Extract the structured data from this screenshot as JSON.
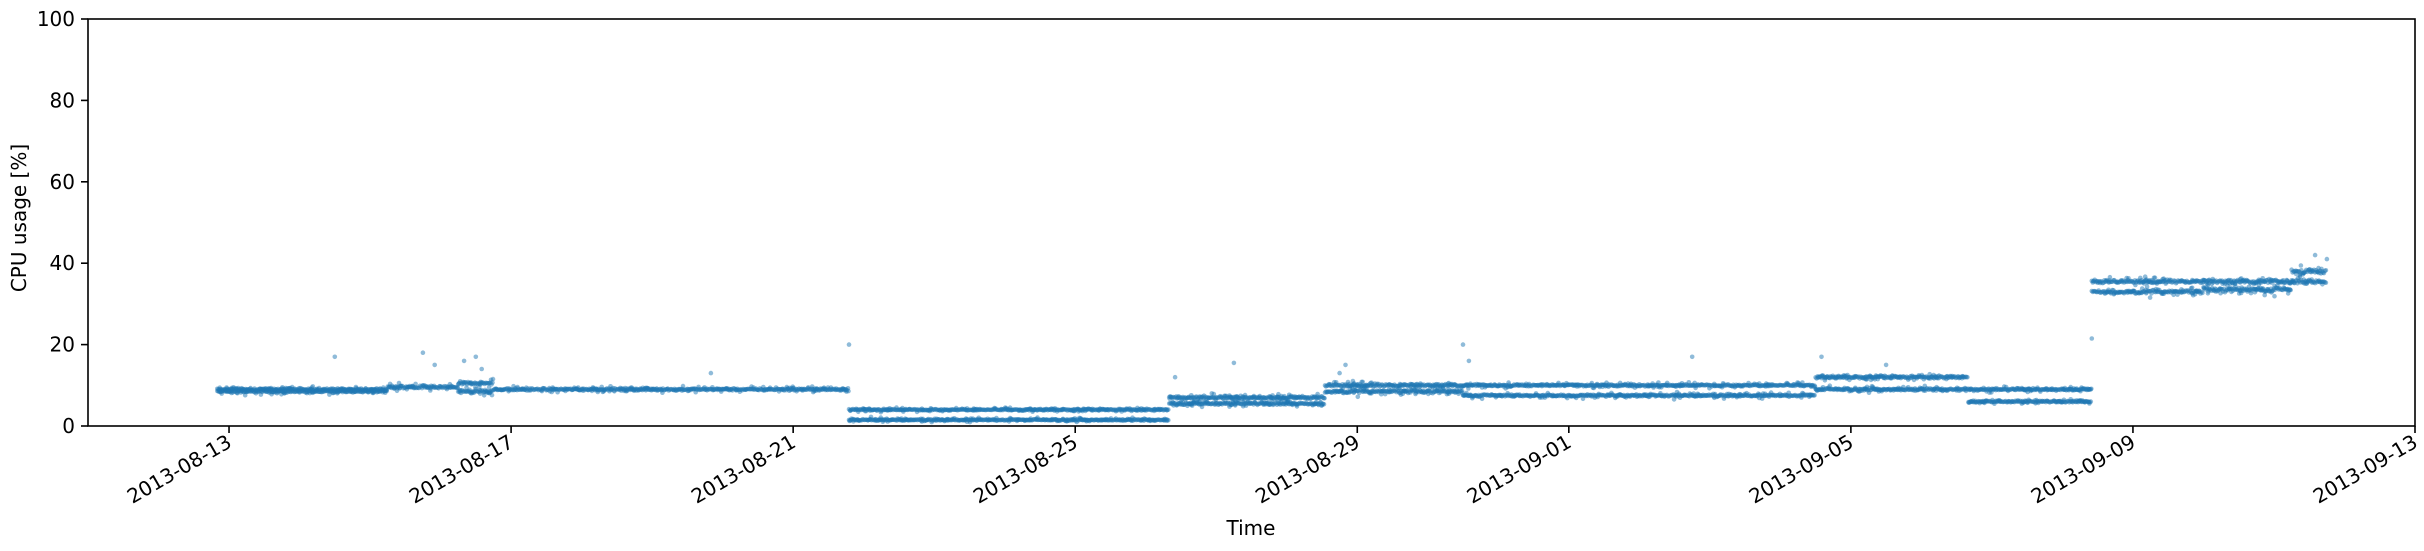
{
  "chart_data": {
    "type": "scatter",
    "title": "",
    "xlabel": "Time",
    "ylabel": "CPU usage [%]",
    "xlim": [
      "2013-08-11",
      "2013-09-13"
    ],
    "ylim": [
      0,
      100
    ],
    "grid": false,
    "marker_color": "#1f77b4",
    "marker_alpha": 0.5,
    "yticks": [
      0,
      20,
      40,
      60,
      80,
      100
    ],
    "xticks": [
      "2013-08-13",
      "2013-08-17",
      "2013-08-21",
      "2013-08-25",
      "2013-08-29",
      "2013-09-01",
      "2013-09-05",
      "2013-09-09",
      "2013-09-13"
    ],
    "x_tick_rotation_deg": 30,
    "segments": [
      {
        "start": "2013-08-12T20:00",
        "end": "2013-08-15T06:00",
        "levels": [
          9.0,
          8.5
        ],
        "noise": 0.8
      },
      {
        "start": "2013-08-15T06:00",
        "end": "2013-08-16T06:00",
        "levels": [
          9.5
        ],
        "noise": 1.0
      },
      {
        "start": "2013-08-16T06:00",
        "end": "2013-08-16T18:00",
        "levels": [
          8.5,
          10.5
        ],
        "noise": 1.2
      },
      {
        "start": "2013-08-16T18:00",
        "end": "2013-08-21T19:00",
        "levels": [
          9.0
        ],
        "noise": 0.7
      },
      {
        "start": "2013-08-21T19:00",
        "end": "2013-08-26T08:00",
        "levels": [
          1.5,
          4.0
        ],
        "noise": 0.5
      },
      {
        "start": "2013-08-26T08:00",
        "end": "2013-08-28T13:00",
        "levels": [
          5.5,
          7.0
        ],
        "noise": 0.9
      },
      {
        "start": "2013-08-28T13:00",
        "end": "2013-08-30T12:00",
        "levels": [
          8.5,
          10.0
        ],
        "noise": 1.0
      },
      {
        "start": "2013-08-30T12:00",
        "end": "2013-09-04T12:00",
        "levels": [
          7.5,
          10.0
        ],
        "noise": 0.7
      },
      {
        "start": "2013-09-04T12:00",
        "end": "2013-09-06T16:00",
        "levels": [
          9.0,
          12.0
        ],
        "noise": 0.8
      },
      {
        "start": "2013-09-06T16:00",
        "end": "2013-09-08T10:00",
        "levels": [
          6.0,
          9.0
        ],
        "noise": 0.6
      },
      {
        "start": "2013-09-08T10:00",
        "end": "2013-09-10T00:00",
        "levels": [
          33.0,
          35.5
        ],
        "noise": 1.1
      },
      {
        "start": "2013-09-10T00:00",
        "end": "2013-09-11T06:00",
        "levels": [
          33.5,
          35.5
        ],
        "noise": 1.4
      },
      {
        "start": "2013-09-11T06:00",
        "end": "2013-09-11T18:00",
        "levels": [
          35.5,
          38.0
        ],
        "noise": 1.5
      }
    ],
    "outliers": [
      {
        "x": "2013-08-14T12:00",
        "y": 17
      },
      {
        "x": "2013-08-15T18:00",
        "y": 18
      },
      {
        "x": "2013-08-15T22:00",
        "y": 15
      },
      {
        "x": "2013-08-16T08:00",
        "y": 16
      },
      {
        "x": "2013-08-16T12:00",
        "y": 17
      },
      {
        "x": "2013-08-16T14:00",
        "y": 14
      },
      {
        "x": "2013-08-19T20:00",
        "y": 13
      },
      {
        "x": "2013-08-21T19:00",
        "y": 20
      },
      {
        "x": "2013-08-27T06:00",
        "y": 15.5
      },
      {
        "x": "2013-08-26T10:00",
        "y": 12
      },
      {
        "x": "2013-08-28T20:00",
        "y": 15
      },
      {
        "x": "2013-08-28T18:00",
        "y": 13
      },
      {
        "x": "2013-08-30T12:00",
        "y": 20
      },
      {
        "x": "2013-08-30T14:00",
        "y": 16
      },
      {
        "x": "2013-09-02T18:00",
        "y": 17
      },
      {
        "x": "2013-09-04T14:00",
        "y": 17
      },
      {
        "x": "2013-09-05T12:00",
        "y": 15
      },
      {
        "x": "2013-09-08T10:00",
        "y": 21.5
      },
      {
        "x": "2013-09-11T14:00",
        "y": 42
      },
      {
        "x": "2013-09-11T18:00",
        "y": 41
      }
    ]
  }
}
